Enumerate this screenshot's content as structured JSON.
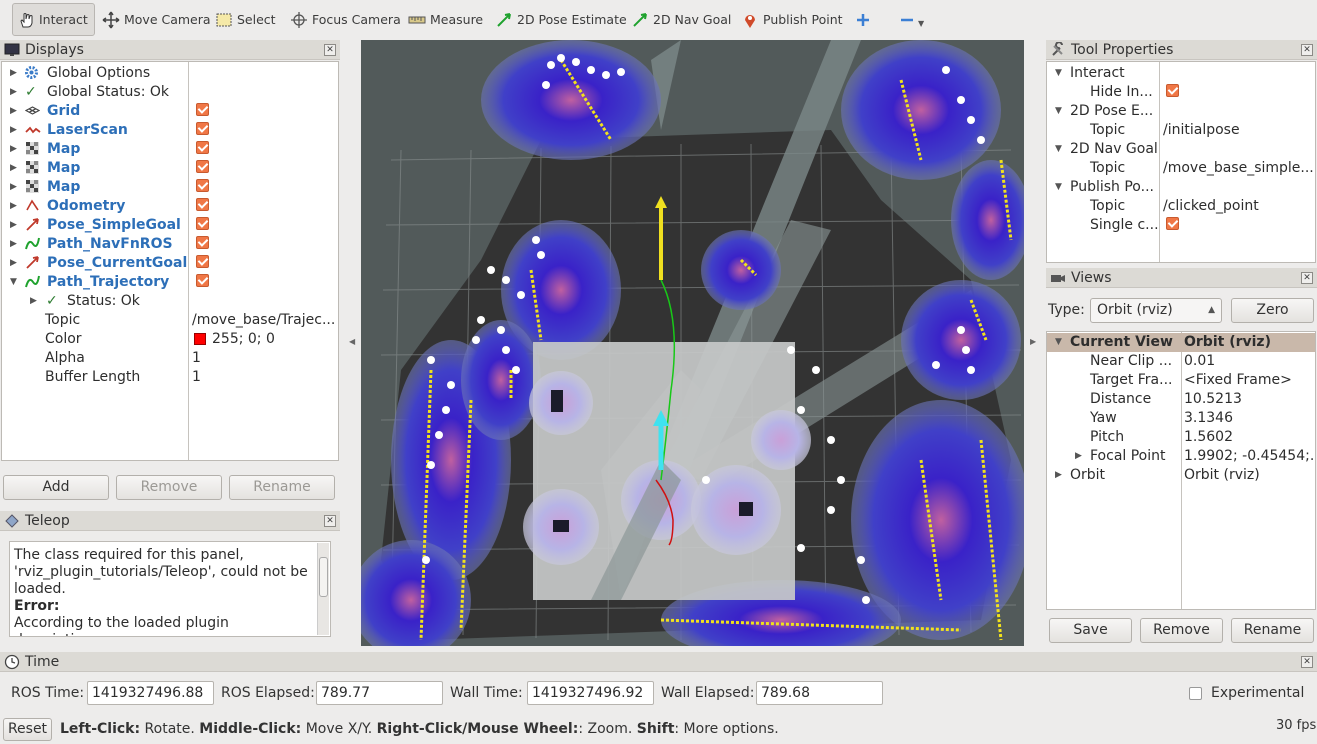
{
  "toolbar": {
    "interact": "Interact",
    "move_camera": "Move Camera",
    "select": "Select",
    "focus_camera": "Focus Camera",
    "measure": "Measure",
    "pose_estimate": "2D Pose Estimate",
    "nav_goal": "2D Nav Goal",
    "publish_point": "Publish Point"
  },
  "displays": {
    "title": "Displays",
    "items": [
      {
        "label": "Global Options"
      },
      {
        "label": "Global Status: Ok"
      },
      {
        "label": "Grid"
      },
      {
        "label": "LaserScan"
      },
      {
        "label": "Map"
      },
      {
        "label": "Map"
      },
      {
        "label": "Map"
      },
      {
        "label": "Odometry"
      },
      {
        "label": "Pose_SimpleGoal"
      },
      {
        "label": "Path_NavFnROS"
      },
      {
        "label": "Pose_CurrentGoal"
      },
      {
        "label": "Path_Trajectory"
      }
    ],
    "status": "Status: Ok",
    "props": [
      {
        "name": "Topic",
        "value": "/move_base/Trajec..."
      },
      {
        "name": "Color",
        "value": "255; 0; 0"
      },
      {
        "name": "Alpha",
        "value": "1"
      },
      {
        "name": "Buffer Length",
        "value": "1"
      }
    ],
    "add": "Add",
    "remove": "Remove",
    "rename": "Rename"
  },
  "teleop": {
    "title": "Teleop",
    "line1": "The class required for this panel,",
    "line2": "'rviz_plugin_tutorials/Teleop', could not be",
    "line3": "loaded.",
    "error": "Error:",
    "line4": "According to the loaded plugin descriptions"
  },
  "tool_props": {
    "title": "Tool Properties",
    "rows": [
      {
        "name": "Interact",
        "value": ""
      },
      {
        "name": "Hide In...",
        "value": ""
      },
      {
        "name": "2D Pose E...",
        "value": ""
      },
      {
        "name": "Topic",
        "value": "/initialpose"
      },
      {
        "name": "2D Nav Goal",
        "value": ""
      },
      {
        "name": "Topic",
        "value": "/move_base_simple..."
      },
      {
        "name": "Publish Po...",
        "value": ""
      },
      {
        "name": "Topic",
        "value": "/clicked_point"
      },
      {
        "name": "Single c...",
        "value": ""
      }
    ]
  },
  "views": {
    "title": "Views",
    "type_label": "Type:",
    "type_value": "Orbit (rviz)",
    "zero": "Zero",
    "current_view": "Current View",
    "current_value": "Orbit (rviz)",
    "rows": [
      {
        "name": "Near Clip ...",
        "value": "0.01"
      },
      {
        "name": "Target Fra...",
        "value": "<Fixed Frame>"
      },
      {
        "name": "Distance",
        "value": "10.5213"
      },
      {
        "name": "Yaw",
        "value": "3.1346"
      },
      {
        "name": "Pitch",
        "value": "1.5602"
      },
      {
        "name": "Focal Point",
        "value": "1.9902; -0.45454;..."
      },
      {
        "name": "Orbit",
        "value": "Orbit (rviz)"
      }
    ],
    "save": "Save",
    "remove": "Remove",
    "rename": "Rename"
  },
  "time": {
    "title": "Time",
    "ros_time_label": "ROS Time:",
    "ros_time": "1419327496.88",
    "ros_elapsed_label": "ROS Elapsed:",
    "ros_elapsed": "789.77",
    "wall_time_label": "Wall Time:",
    "wall_time": "1419327496.92",
    "wall_elapsed_label": "Wall Elapsed:",
    "wall_elapsed": "789.68",
    "experimental": "Experimental"
  },
  "status_bar": {
    "reset": "Reset",
    "left_click": "Left-Click:",
    "rotate": " Rotate. ",
    "middle_click": "Middle-Click:",
    "move_xy": " Move X/Y. ",
    "right_click": "Right-Click/Mouse Wheel:",
    "zoom": ": Zoom. ",
    "shift": "Shift",
    "more": ": More options.",
    "fps": "30 fps"
  }
}
